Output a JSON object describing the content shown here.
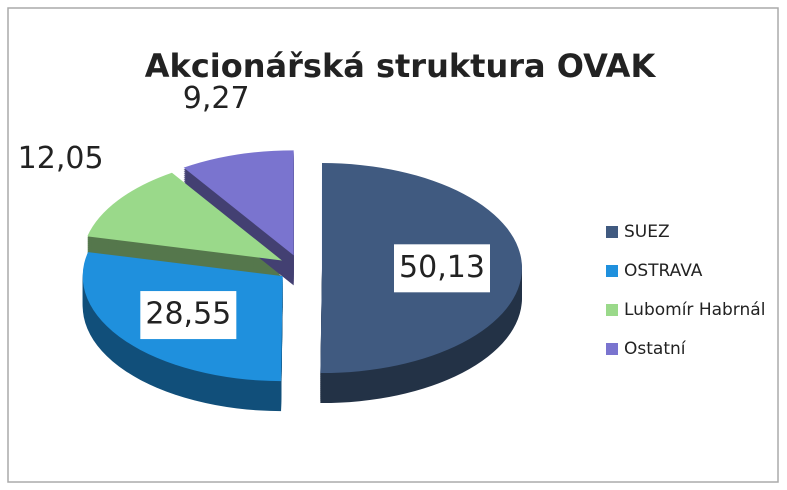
{
  "chart_data": {
    "type": "pie",
    "title": "Akcionářská struktura OVAK",
    "categories": [
      "SUEZ",
      "OSTRAVA",
      "Lubomír Habrnál",
      "Ostatní"
    ],
    "values": [
      50.13,
      28.55,
      12.05,
      9.27
    ],
    "value_labels": [
      "50,13",
      "28,55",
      "12,05",
      "9,27"
    ],
    "colors": [
      "#405a80",
      "#1f90dd",
      "#9ad98a",
      "#7a74cf"
    ],
    "legend": "right"
  }
}
